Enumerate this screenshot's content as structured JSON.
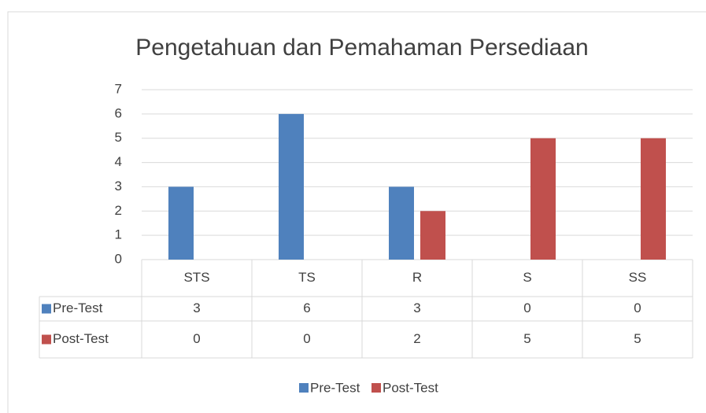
{
  "chart_data": {
    "type": "bar",
    "title": "Pengetahuan dan Pemahaman Persediaan",
    "categories": [
      "STS",
      "TS",
      "R",
      "S",
      "SS"
    ],
    "series": [
      {
        "name": "Pre-Test",
        "color": "#4f81bd",
        "values": [
          3,
          6,
          3,
          0,
          0
        ]
      },
      {
        "name": "Post-Test",
        "color": "#c0504d",
        "values": [
          0,
          0,
          2,
          5,
          5
        ]
      }
    ],
    "ylim": [
      0,
      7
    ],
    "yticks": [
      0,
      1,
      2,
      3,
      4,
      5,
      6,
      7
    ],
    "grid": true,
    "legend": "bottom",
    "data_table": true
  }
}
